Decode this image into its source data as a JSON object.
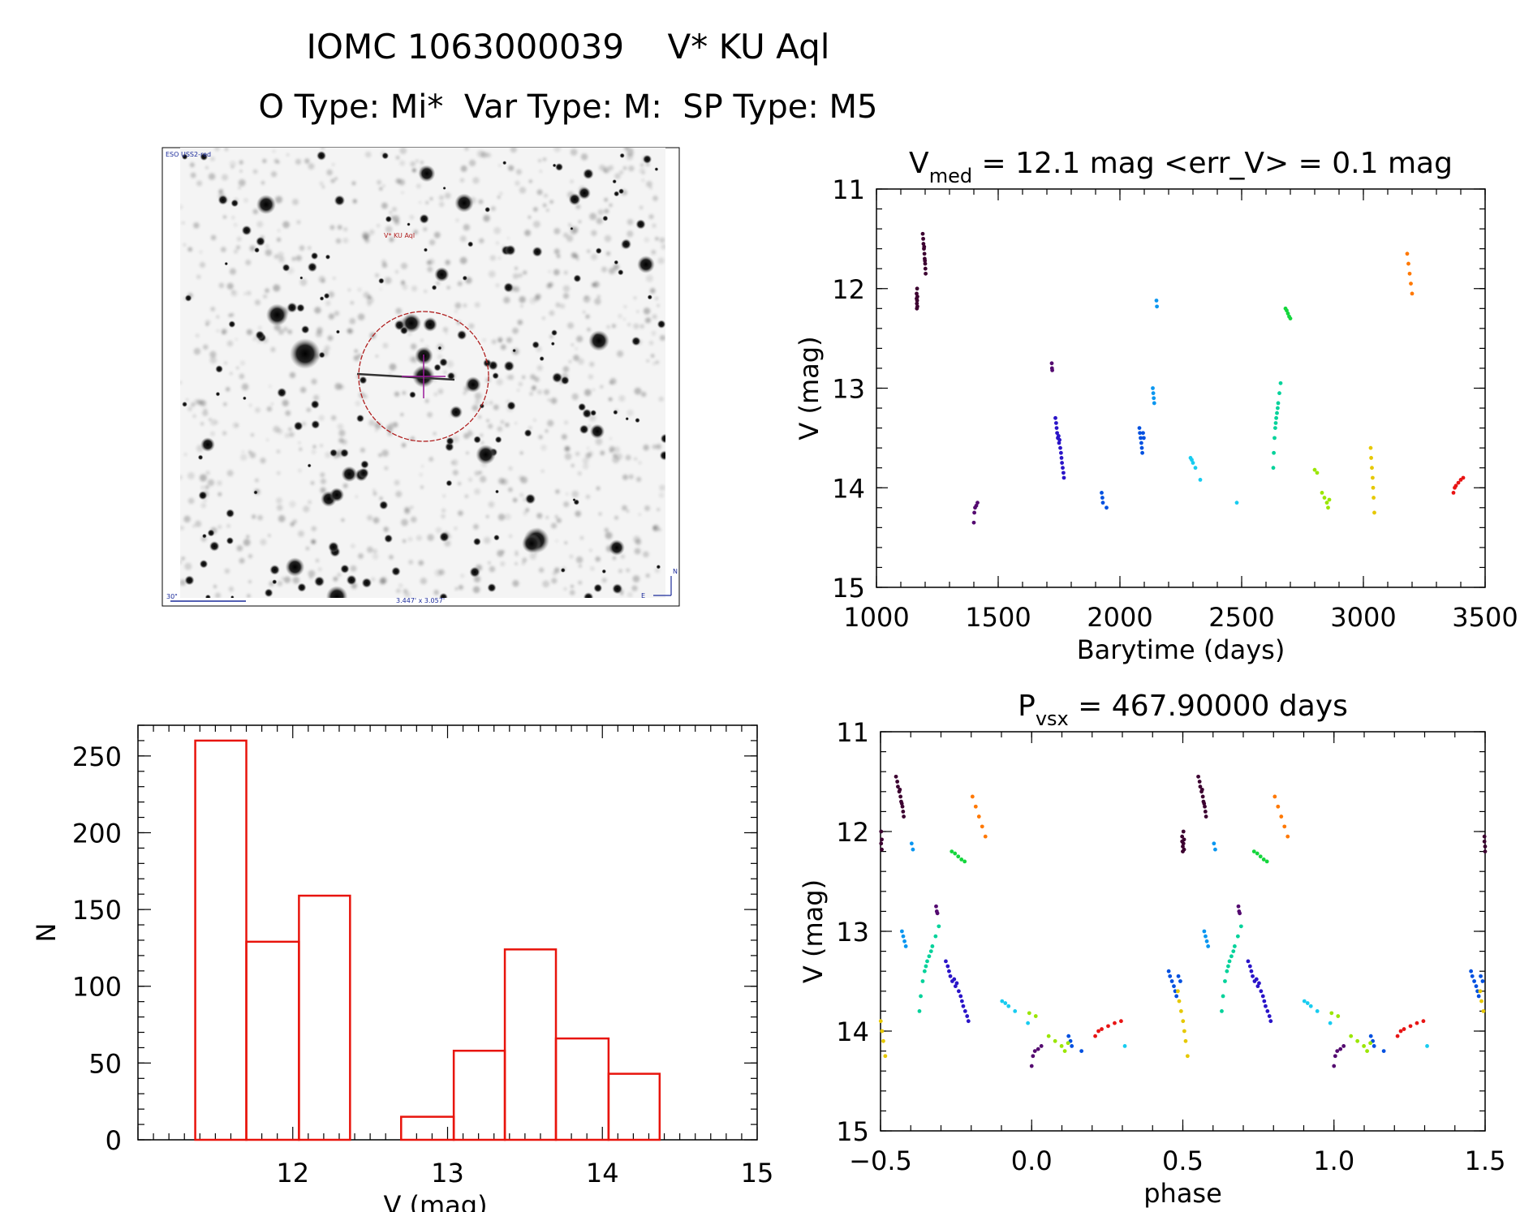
{
  "header": {
    "title_line1": "IOMC 1063000039    V* KU Aql",
    "title_line2": "O Type: Mi*  Var Type: M:  SP Type: M5"
  },
  "finder_chart": {
    "survey_label": "ESO USS2-red",
    "target_label": "V* KU Aql",
    "scale_label": "30\"",
    "size_label": "3.447' x 3.057'",
    "north_label": "N",
    "east_label": "E"
  },
  "colors": {
    "histogram": "#e8140c",
    "seasons": [
      "#3c0030",
      "#540a70",
      "#5a00a0",
      "#2a14c8",
      "#0050e0",
      "#0a96f0",
      "#18ccf0",
      "#00d29a",
      "#14d63c",
      "#9ae600",
      "#e6c800",
      "#ff7800",
      "#e81414",
      "#101010"
    ]
  },
  "chart_data": [
    {
      "id": "light_curve",
      "type": "scatter",
      "title_main": "V",
      "title_sub": "med",
      "title_rest": " = 12.1 mag <err_V> = 0.1 mag",
      "xlabel": "Barytime (days)",
      "ylabel": "V (mag)",
      "xlim": [
        1000,
        3500
      ],
      "ylim": [
        15,
        11
      ],
      "xticks": [
        "1000",
        "1500",
        "2000",
        "2500",
        "3000",
        "3500"
      ],
      "yticks": [
        "11",
        "12",
        "13",
        "14",
        "15"
      ],
      "series": [
        {
          "name": "s1",
          "color_index": 0,
          "x": [
            1165,
            1165,
            1166,
            1166,
            1167,
            1167,
            1168,
            1168
          ],
          "y": [
            12.05,
            12.1,
            12.15,
            12.2,
            12.0,
            12.12,
            12.18,
            12.08
          ]
        },
        {
          "name": "s2",
          "color_index": 0,
          "x": [
            1190,
            1192,
            1193,
            1195,
            1196,
            1197,
            1198,
            1199,
            1200,
            1201,
            1202
          ],
          "y": [
            11.45,
            11.5,
            11.55,
            11.6,
            11.58,
            11.65,
            11.7,
            11.72,
            11.75,
            11.8,
            11.85
          ]
        },
        {
          "name": "s3",
          "color_index": 1,
          "x": [
            1400,
            1402,
            1405,
            1410,
            1415
          ],
          "y": [
            14.35,
            14.25,
            14.2,
            14.18,
            14.15
          ]
        },
        {
          "name": "s4",
          "color_index": 1,
          "x": [
            1720,
            1721,
            1722
          ],
          "y": [
            12.75,
            12.8,
            12.82
          ]
        },
        {
          "name": "s5",
          "color_index": 3,
          "x": [
            1735,
            1738,
            1740,
            1742,
            1745,
            1748,
            1750,
            1752,
            1755,
            1758,
            1760,
            1762,
            1765,
            1768,
            1770
          ],
          "y": [
            13.3,
            13.35,
            13.4,
            13.45,
            13.5,
            13.48,
            13.55,
            13.52,
            13.6,
            13.65,
            13.7,
            13.75,
            13.8,
            13.85,
            13.9
          ]
        },
        {
          "name": "s6",
          "color_index": 4,
          "x": [
            1925,
            1928,
            1930,
            1945
          ],
          "y": [
            14.05,
            14.1,
            14.15,
            14.2
          ]
        },
        {
          "name": "s7",
          "color_index": 4,
          "x": [
            2080,
            2082,
            2085,
            2088,
            2090,
            2092,
            2095,
            2098
          ],
          "y": [
            13.4,
            13.45,
            13.5,
            13.55,
            13.6,
            13.65,
            13.45,
            13.5
          ]
        },
        {
          "name": "s8",
          "color_index": 5,
          "x": [
            2135,
            2137,
            2139,
            2141,
            2150,
            2152
          ],
          "y": [
            13.0,
            13.05,
            13.1,
            13.15,
            12.12,
            12.18
          ]
        },
        {
          "name": "s9",
          "color_index": 6,
          "x": [
            2290,
            2295,
            2300,
            2310,
            2330,
            2480
          ],
          "y": [
            13.7,
            13.72,
            13.75,
            13.8,
            13.92,
            14.15
          ]
        },
        {
          "name": "s10",
          "color_index": 7,
          "x": [
            2630,
            2632,
            2635,
            2638,
            2640,
            2642,
            2645,
            2648,
            2650,
            2655,
            2660
          ],
          "y": [
            13.8,
            13.65,
            13.5,
            13.4,
            13.35,
            13.3,
            13.25,
            13.2,
            13.15,
            13.05,
            12.95
          ]
        },
        {
          "name": "s11",
          "color_index": 8,
          "x": [
            2680,
            2685,
            2690,
            2695,
            2700
          ],
          "y": [
            12.2,
            12.22,
            12.25,
            12.28,
            12.3
          ]
        },
        {
          "name": "s12",
          "color_index": 9,
          "x": [
            2800,
            2810,
            2830,
            2840,
            2850,
            2855,
            2860
          ],
          "y": [
            13.82,
            13.85,
            14.05,
            14.1,
            14.15,
            14.2,
            14.12
          ]
        },
        {
          "name": "s13",
          "color_index": 10,
          "x": [
            3030,
            3032,
            3035,
            3038,
            3040,
            3042,
            3045
          ],
          "y": [
            13.6,
            13.7,
            13.8,
            13.9,
            14.0,
            14.1,
            14.25
          ]
        },
        {
          "name": "s14",
          "color_index": 11,
          "x": [
            3180,
            3185,
            3190,
            3195,
            3200
          ],
          "y": [
            11.65,
            11.75,
            11.85,
            11.95,
            12.05
          ]
        },
        {
          "name": "s15",
          "color_index": 12,
          "x": [
            3370,
            3375,
            3380,
            3390,
            3400,
            3410
          ],
          "y": [
            14.05,
            14.0,
            13.98,
            13.95,
            13.92,
            13.9
          ]
        }
      ]
    },
    {
      "id": "histogram",
      "type": "bar",
      "xlabel": "V (mag)",
      "ylabel": "N",
      "xlim": [
        11.0,
        15.0
      ],
      "ylim": [
        0,
        270
      ],
      "xticks": [
        "12",
        "13",
        "14",
        "15"
      ],
      "yticks": [
        "0",
        "50",
        "100",
        "150",
        "200",
        "250"
      ],
      "bin_edges": [
        11.37,
        11.7,
        12.04,
        12.37,
        12.7,
        13.04,
        13.37,
        13.7,
        14.04,
        14.37
      ],
      "counts": [
        260,
        129,
        159,
        0,
        15,
        58,
        124,
        66,
        43
      ]
    },
    {
      "id": "phased_curve",
      "type": "scatter",
      "title_main": "P",
      "title_sub": "vsx",
      "title_rest": " = 467.90000 days",
      "xlabel": "phase",
      "ylabel": "V (mag)",
      "xlim": [
        -0.5,
        1.5
      ],
      "ylim": [
        15,
        11
      ],
      "xticks": [
        "−0.5",
        "0.0",
        "0.5",
        "1.0",
        "1.5"
      ],
      "yticks": [
        "11",
        "12",
        "13",
        "14",
        "15"
      ],
      "period": 467.9,
      "epoch": 1400
    }
  ]
}
